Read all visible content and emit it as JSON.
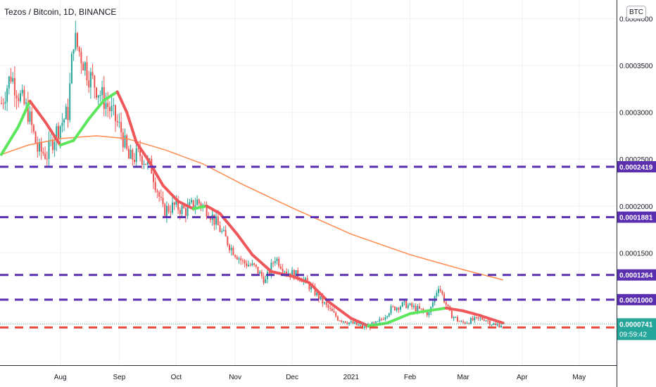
{
  "header": {
    "symbol": "Tezos / Bitcoin, 1D, BINANCE",
    "currency": "BTC"
  },
  "countdown": "09:59:42",
  "colors": {
    "up_candle": "#26a69a",
    "down_candle": "#ef5350",
    "ma_up": "#5ce65c",
    "ma_down": "#f0575a",
    "ma_long": "#ff8a4c",
    "support_line": "#5a2fb0",
    "current_line": "#e84a3b",
    "last_price_bg": "#26a69a",
    "grid": "#eef0f3",
    "axis_text": "#131722"
  },
  "chart_data": {
    "type": "candlestick",
    "title": "Tezos / Bitcoin, 1D, BINANCE",
    "currency": "BTC",
    "x_ticks": [
      "Aug",
      "Sep",
      "Oct",
      "Nov",
      "Dec",
      "2021",
      "Feb",
      "Mar",
      "Apr",
      "May"
    ],
    "y_ticks": [
      "0.0004000",
      "0.0003500",
      "0.0003000",
      "0.0002500",
      "0.0002000",
      "0.0001500",
      "0.0001000"
    ],
    "ylim": [
      3e-05,
      0.00042
    ],
    "grid": true,
    "close_series": [
      [
        "2020-07-01",
        0.00031
      ],
      [
        "2020-07-06",
        0.00034
      ],
      [
        "2020-07-10",
        0.00032
      ],
      [
        "2020-07-15",
        0.0003
      ],
      [
        "2020-07-20",
        0.00026
      ],
      [
        "2020-07-25",
        0.000255
      ],
      [
        "2020-07-30",
        0.00028
      ],
      [
        "2020-08-05",
        0.0003
      ],
      [
        "2020-08-08",
        0.00038
      ],
      [
        "2020-08-12",
        0.00036
      ],
      [
        "2020-08-16",
        0.00034
      ],
      [
        "2020-08-22",
        0.00032
      ],
      [
        "2020-08-28",
        0.0003
      ],
      [
        "2020-09-02",
        0.00028
      ],
      [
        "2020-09-06",
        0.00025
      ],
      [
        "2020-09-12",
        0.000255
      ],
      [
        "2020-09-18",
        0.00024
      ],
      [
        "2020-09-24",
        0.000195
      ],
      [
        "2020-09-30",
        0.0002
      ],
      [
        "2020-10-06",
        0.000195
      ],
      [
        "2020-10-12",
        0.000205
      ],
      [
        "2020-10-18",
        0.000195
      ],
      [
        "2020-10-24",
        0.000175
      ],
      [
        "2020-10-30",
        0.000155
      ],
      [
        "2020-11-05",
        0.00014
      ],
      [
        "2020-11-11",
        0.000135
      ],
      [
        "2020-11-17",
        0.00012
      ],
      [
        "2020-11-22",
        0.000145
      ],
      [
        "2020-11-28",
        0.00013
      ],
      [
        "2020-12-05",
        0.000125
      ],
      [
        "2020-12-12",
        0.00011
      ],
      [
        "2020-12-18",
        9.5e-05
      ],
      [
        "2020-12-25",
        8e-05
      ],
      [
        "2021-01-01",
        7.5e-05
      ],
      [
        "2021-01-08",
        7e-05
      ],
      [
        "2021-01-15",
        7.5e-05
      ],
      [
        "2021-01-22",
        9e-05
      ],
      [
        "2021-01-29",
        9.5e-05
      ],
      [
        "2021-02-05",
        9e-05
      ],
      [
        "2021-02-11",
        8.5e-05
      ],
      [
        "2021-02-16",
        0.000115
      ],
      [
        "2021-02-22",
        8.5e-05
      ],
      [
        "2021-02-28",
        7.5e-05
      ],
      [
        "2021-03-06",
        7.8e-05
      ],
      [
        "2021-03-12",
        8e-05
      ],
      [
        "2021-03-18",
        7.2e-05
      ],
      [
        "2021-03-22",
        7.41e-05
      ]
    ],
    "ma_short": [
      [
        "2020-07-01",
        0.000255
      ],
      [
        "2020-07-10",
        0.000285
      ],
      [
        "2020-07-16",
        0.000312
      ],
      [
        "2020-07-24",
        0.00029
      ],
      [
        "2020-08-01",
        0.000265
      ],
      [
        "2020-08-08",
        0.00027
      ],
      [
        "2020-08-16",
        0.000293
      ],
      [
        "2020-08-24",
        0.000313
      ],
      [
        "2020-08-31",
        0.000322
      ],
      [
        "2020-09-05",
        0.0003
      ],
      [
        "2020-09-10",
        0.000268
      ],
      [
        "2020-09-16",
        0.00025
      ],
      [
        "2020-09-24",
        0.000222
      ],
      [
        "2020-10-02",
        0.000205
      ],
      [
        "2020-10-10",
        0.000197
      ],
      [
        "2020-10-17",
        0.0002
      ],
      [
        "2020-10-24",
        0.000192
      ],
      [
        "2020-11-02",
        0.00017
      ],
      [
        "2020-11-10",
        0.000148
      ],
      [
        "2020-11-20",
        0.00013
      ],
      [
        "2020-12-01",
        0.000125
      ],
      [
        "2020-12-10",
        0.000118
      ],
      [
        "2020-12-20",
        9.8e-05
      ],
      [
        "2021-01-01",
        8e-05
      ],
      [
        "2021-01-10",
        7.2e-05
      ],
      [
        "2021-01-20",
        7.5e-05
      ],
      [
        "2021-02-01",
        8.5e-05
      ],
      [
        "2021-02-10",
        8.8e-05
      ],
      [
        "2021-02-20",
        9.1e-05
      ],
      [
        "2021-03-01",
        8.8e-05
      ],
      [
        "2021-03-10",
        8.3e-05
      ],
      [
        "2021-03-22",
        7.5e-05
      ]
    ],
    "ma_long": [
      [
        "2020-07-01",
        0.000255
      ],
      [
        "2020-07-15",
        0.000265
      ],
      [
        "2020-08-01",
        0.000272
      ],
      [
        "2020-08-20",
        0.000275
      ],
      [
        "2020-09-05",
        0.000272
      ],
      [
        "2020-09-25",
        0.00026
      ],
      [
        "2020-10-15",
        0.000245
      ],
      [
        "2020-11-05",
        0.000223
      ],
      [
        "2020-12-01",
        0.000198
      ],
      [
        "2021-01-01",
        0.00017
      ],
      [
        "2021-02-01",
        0.000148
      ],
      [
        "2021-03-01",
        0.000132
      ],
      [
        "2021-03-22",
        0.000121
      ]
    ],
    "levels": [
      {
        "value": "0.0002419",
        "y": 0.0002419,
        "color": "#5a2fb0"
      },
      {
        "value": "0.0001881",
        "y": 0.0001881,
        "color": "#5a2fb0"
      },
      {
        "value": "0.0001264",
        "y": 0.0001264,
        "color": "#5a2fb0"
      },
      {
        "value": "0.0001000",
        "y": 0.0001,
        "color": "#5a2fb0"
      },
      {
        "value": "0.0000703",
        "y": 7.03e-05,
        "color": "#e84a3b"
      }
    ],
    "last_price": {
      "value": "0.0000741",
      "y": 7.41e-05
    }
  }
}
